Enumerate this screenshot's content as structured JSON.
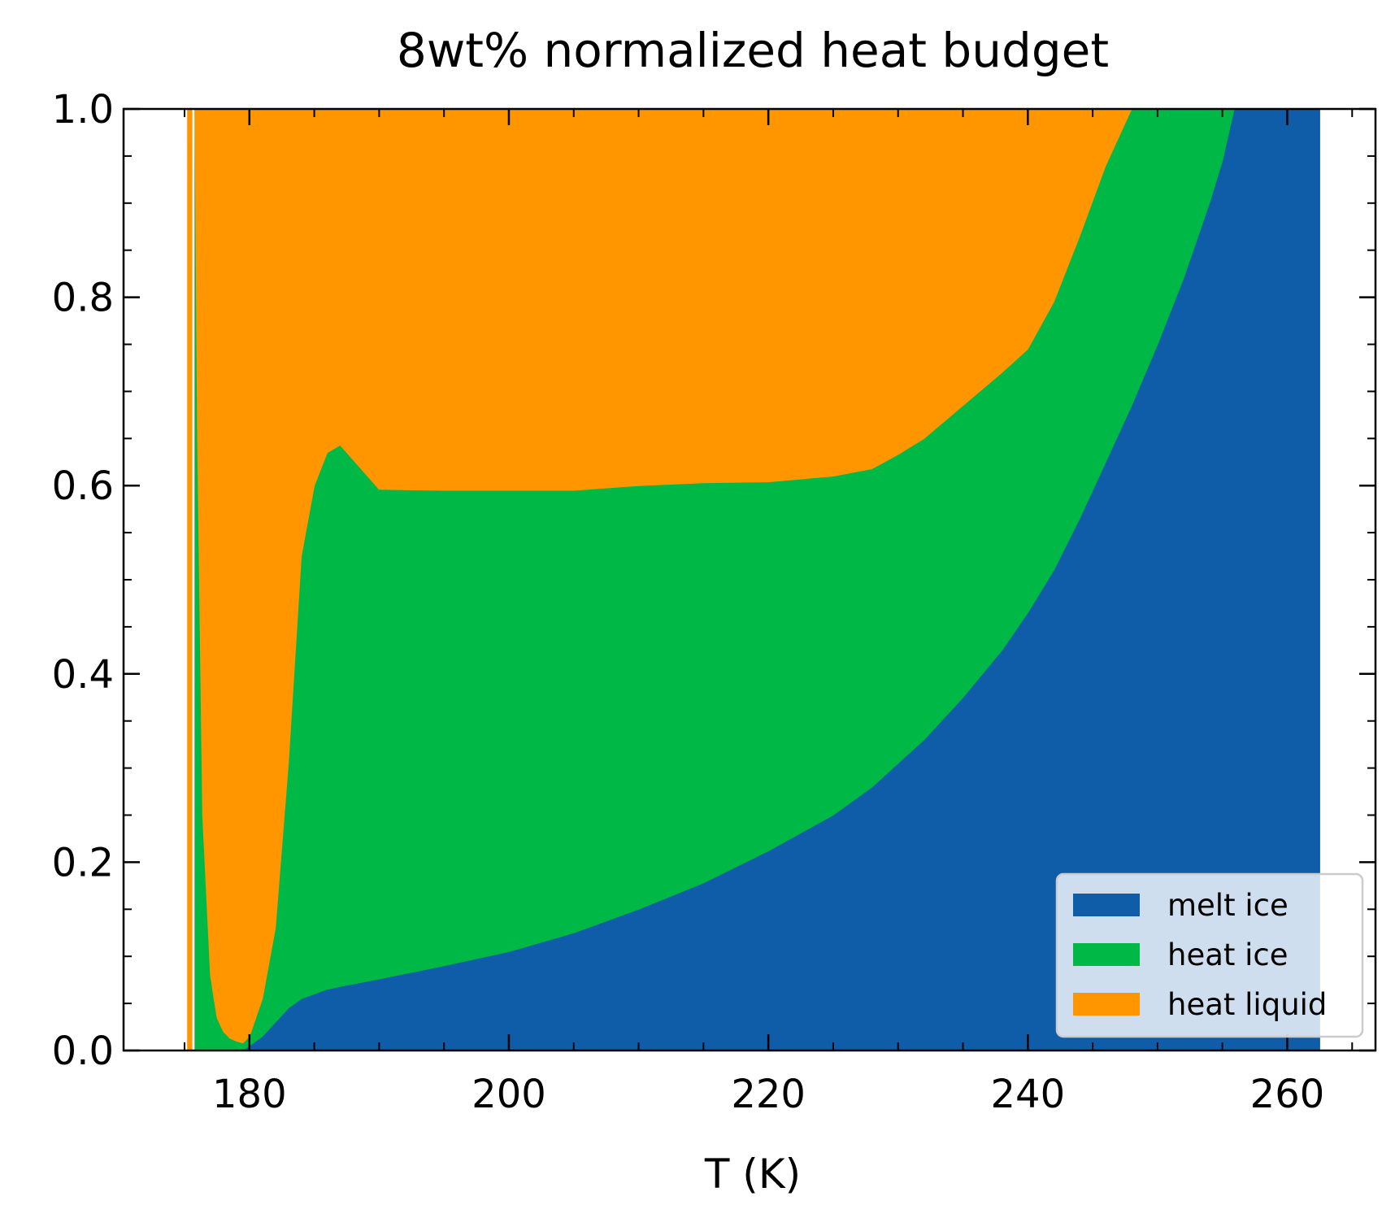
{
  "chart_data": {
    "type": "area",
    "stacked": true,
    "normalized": true,
    "title": "8wt% normalized heat budget",
    "xlabel": "T (K)",
    "ylabel": "",
    "xlim": [
      170.3,
      266.8
    ],
    "ylim": [
      0.0,
      1.0
    ],
    "x_ticks": [
      180,
      200,
      220,
      240,
      260
    ],
    "x_tick_labels": [
      "180",
      "200",
      "220",
      "240",
      "260"
    ],
    "y_ticks": [
      0.0,
      0.2,
      0.4,
      0.6,
      0.8,
      1.0
    ],
    "y_tick_labels": [
      "0.0",
      "0.2",
      "0.4",
      "0.6",
      "0.8",
      "1.0"
    ],
    "grid": false,
    "legend_position": "lower-right",
    "x": [
      175.8,
      176.0,
      176.4,
      177.0,
      177.5,
      178.0,
      178.5,
      179.0,
      179.5,
      180.0,
      181.0,
      182.0,
      183.0,
      184.0,
      185.0,
      186.0,
      187.0,
      190.0,
      195.0,
      200.0,
      205.0,
      210.0,
      215.0,
      220.0,
      225.0,
      228.0,
      230.0,
      232.0,
      235.0,
      238.0,
      240.0,
      242.0,
      244.0,
      246.0,
      248.0,
      250.0,
      252.0,
      253.0,
      254.0,
      255.0,
      255.9,
      256.5,
      258.0,
      260.0,
      262.5
    ],
    "series": [
      {
        "name": "melt ice",
        "color": "#0f5ca8",
        "values": [
          0.0,
          0.0,
          0.0,
          0.0,
          0.0,
          0.0,
          0.0,
          0.0,
          0.0,
          0.005,
          0.015,
          0.03,
          0.045,
          0.055,
          0.06,
          0.065,
          0.068,
          0.076,
          0.09,
          0.105,
          0.125,
          0.15,
          0.178,
          0.212,
          0.25,
          0.28,
          0.305,
          0.33,
          0.375,
          0.425,
          0.465,
          0.51,
          0.565,
          0.625,
          0.685,
          0.75,
          0.82,
          0.86,
          0.9,
          0.945,
          1.0,
          1.0,
          1.0,
          1.0,
          1.0
        ]
      },
      {
        "name": "heat ice",
        "color": "#00b845",
        "values": [
          1.0,
          0.65,
          0.25,
          0.08,
          0.035,
          0.02,
          0.013,
          0.01,
          0.008,
          0.01,
          0.04,
          0.1,
          0.26,
          0.47,
          0.54,
          0.57,
          0.575,
          0.52,
          0.505,
          0.49,
          0.47,
          0.45,
          0.425,
          0.392,
          0.36,
          0.338,
          0.328,
          0.32,
          0.31,
          0.295,
          0.28,
          0.285,
          0.3,
          0.315,
          0.335,
          0.34,
          0.3,
          0.27,
          0.24,
          0.055,
          0.0,
          0.0,
          0.0,
          0.0,
          0.0
        ]
      },
      {
        "name": "heat liquid",
        "color": "#ff9600",
        "values": [
          0.0,
          0.35,
          0.75,
          0.92,
          0.965,
          0.98,
          0.987,
          0.99,
          0.992,
          0.985,
          0.945,
          0.87,
          0.695,
          0.475,
          0.4,
          0.365,
          0.357,
          0.404,
          0.405,
          0.405,
          0.405,
          0.4,
          0.397,
          0.396,
          0.39,
          0.382,
          0.367,
          0.35,
          0.315,
          0.28,
          0.255,
          0.205,
          0.135,
          0.06,
          -0.02,
          -0.09,
          -0.12,
          -0.13,
          -0.14,
          0.0,
          0.0,
          0.0,
          0.0,
          0.0,
          0.0
        ]
      }
    ],
    "thin_heat_liquid_strip": {
      "x_from": 175.2,
      "x_to": 175.6,
      "value": 1.0
    }
  }
}
